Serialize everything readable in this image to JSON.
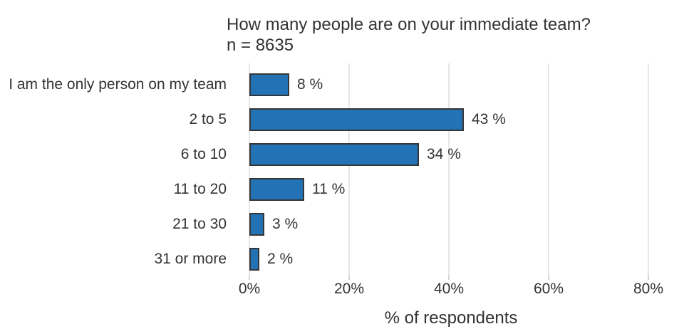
{
  "title": "How many people are on your immediate team?",
  "subtitle": "n = 8635",
  "chart_data": {
    "type": "bar",
    "orientation": "horizontal",
    "title": "How many people are on your immediate team?",
    "subtitle": "n = 8635",
    "categories": [
      "I am the only person on my team",
      "2 to 5",
      "6 to 10",
      "11 to 20",
      "21 to 30",
      "31 or more"
    ],
    "values": [
      8,
      43,
      34,
      11,
      3,
      2
    ],
    "value_labels": [
      "8 %",
      "43 %",
      "34 %",
      "11 %",
      "3 %",
      "2 %"
    ],
    "xlabel": "% of respondents",
    "x_ticks": [
      0,
      20,
      40,
      60,
      80
    ],
    "x_tick_labels": [
      "0%",
      "20%",
      "40%",
      "60%",
      "80%"
    ],
    "xlim": [
      0,
      84
    ],
    "grid": "vertical-gridlines-only",
    "legend": "none",
    "colors": {
      "bar_fill": "#2272b5",
      "bar_border": "#363636",
      "gridline": "#e6e6e6",
      "tick": "#d4d4d4",
      "text": "#333333",
      "background": "#ffffff"
    }
  }
}
